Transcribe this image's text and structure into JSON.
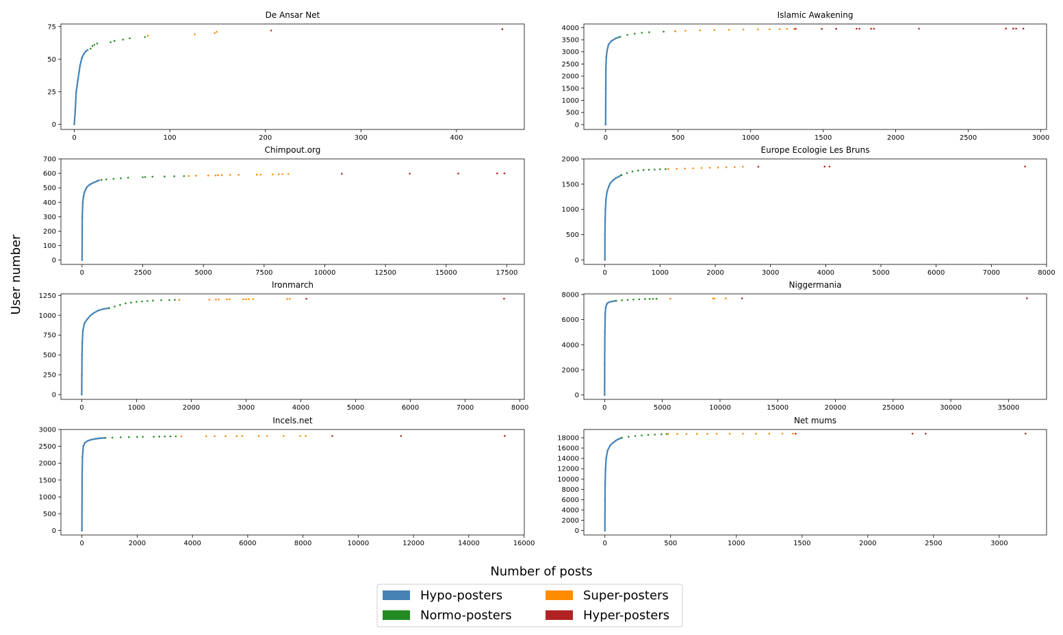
{
  "figure": {
    "xlabel": "Number of posts",
    "ylabel": "User number"
  },
  "legend": {
    "position": "bottom-center",
    "items": [
      {
        "label": "Hypo-posters",
        "color": "#4682b4"
      },
      {
        "label": "Normo-posters",
        "color": "#228b22"
      },
      {
        "label": "Super-posters",
        "color": "#ff8c00"
      },
      {
        "label": "Hyper-posters",
        "color": "#b22222"
      }
    ]
  },
  "chart_data": [
    {
      "type": "scatter",
      "title": "De Ansar Net",
      "n_users": 73,
      "xlim": [
        -14,
        471
      ],
      "ylim": [
        -4,
        77
      ],
      "xticks": [
        0,
        100,
        200,
        300,
        400
      ],
      "yticks": [
        0,
        25,
        50,
        75
      ],
      "series": [
        {
          "category": "Hypo-posters",
          "x": [
            0,
            1,
            2,
            3,
            4,
            5,
            6,
            7,
            8,
            10,
            12,
            14
          ],
          "y": [
            0,
            10,
            25,
            30,
            35,
            40,
            45,
            48,
            51,
            54,
            56,
            57
          ]
        },
        {
          "category": "Normo-posters",
          "x": [
            17,
            19,
            21,
            24,
            38,
            42,
            51,
            58,
            74
          ],
          "y": [
            58,
            60,
            61,
            62,
            63,
            64,
            65,
            66,
            67
          ]
        },
        {
          "category": "Super-posters",
          "x": [
            77,
            126,
            147,
            149
          ],
          "y": [
            68,
            69,
            70,
            71
          ]
        },
        {
          "category": "Hyper-posters",
          "x": [
            206,
            448
          ],
          "y": [
            72,
            73
          ]
        }
      ]
    },
    {
      "type": "scatter",
      "title": "Islamic Awakening",
      "n_users": 3960,
      "xlim": [
        -150,
        3040
      ],
      "ylim": [
        -200,
        4150
      ],
      "xticks": [
        0,
        500,
        1000,
        1500,
        2000,
        2500,
        3000
      ],
      "yticks": [
        0,
        500,
        1000,
        1500,
        2000,
        2500,
        3000,
        3500,
        4000
      ],
      "series": [
        {
          "category": "Hypo-posters",
          "x": [
            0,
            1,
            2,
            5,
            10,
            20,
            40,
            70,
            100
          ],
          "y": [
            0,
            1500,
            2300,
            2800,
            3050,
            3300,
            3450,
            3560,
            3620
          ]
        },
        {
          "category": "Normo-posters",
          "x": [
            100,
            150,
            200,
            250,
            300,
            400,
            480
          ],
          "y": [
            3620,
            3700,
            3750,
            3790,
            3810,
            3835,
            3850
          ]
        },
        {
          "category": "Super-posters",
          "x": [
            480,
            550,
            650,
            750,
            850,
            950,
            1050,
            1130,
            1200,
            1250,
            1300
          ],
          "y": [
            3850,
            3870,
            3890,
            3900,
            3910,
            3920,
            3925,
            3930,
            3935,
            3940,
            3945
          ]
        },
        {
          "category": "Hyper-posters",
          "x": [
            1310,
            1490,
            1590,
            1730,
            1750,
            1830,
            1850,
            2160,
            2760,
            2810,
            2830,
            2880
          ],
          "y": [
            3950,
            3950,
            3950,
            3955,
            3955,
            3955,
            3955,
            3955,
            3960,
            3960,
            3960,
            3960
          ]
        }
      ]
    },
    {
      "type": "scatter",
      "title": "Chimpout.org",
      "n_users": 600,
      "xlim": [
        -870,
        18220
      ],
      "ylim": [
        -30,
        700
      ],
      "xticks": [
        0,
        2500,
        5000,
        7500,
        10000,
        12500,
        15000,
        17500
      ],
      "yticks": [
        0,
        100,
        200,
        300,
        400,
        500,
        600,
        700
      ],
      "series": [
        {
          "category": "Hypo-posters",
          "x": [
            0,
            10,
            30,
            60,
            100,
            150,
            200,
            300,
            400,
            500,
            600,
            700
          ],
          "y": [
            0,
            300,
            400,
            440,
            470,
            490,
            505,
            520,
            530,
            538,
            545,
            552
          ]
        },
        {
          "category": "Normo-posters",
          "x": [
            800,
            1000,
            1300,
            1600,
            1900,
            2500,
            2600,
            2900,
            3400,
            3800,
            4200
          ],
          "y": [
            555,
            558,
            562,
            566,
            570,
            573,
            575,
            577,
            578,
            580,
            581
          ]
        },
        {
          "category": "Super-posters",
          "x": [
            4400,
            4700,
            5200,
            5500,
            5600,
            5750,
            6100,
            6450,
            7200,
            7350,
            7850,
            8100,
            8250,
            8500
          ],
          "y": [
            582,
            584,
            585,
            586,
            587,
            588,
            589,
            590,
            591,
            592,
            593,
            594,
            595,
            596
          ]
        },
        {
          "category": "Hyper-posters",
          "x": [
            10700,
            13500,
            15500,
            17100,
            17400
          ],
          "y": [
            597,
            598,
            599,
            600,
            600
          ]
        }
      ]
    },
    {
      "type": "scatter",
      "title": "Europe Ecologie Les Bruns",
      "n_users": 1850,
      "xlim": [
        -380,
        8000
      ],
      "ylim": [
        -90,
        2000
      ],
      "xticks": [
        0,
        1000,
        2000,
        3000,
        4000,
        5000,
        6000,
        7000,
        8000
      ],
      "yticks": [
        0,
        500,
        1000,
        1500,
        2000
      ],
      "series": [
        {
          "category": "Hypo-posters",
          "x": [
            0,
            2,
            5,
            10,
            20,
            40,
            70,
            100,
            150,
            200,
            250,
            300
          ],
          "y": [
            0,
            500,
            800,
            1000,
            1200,
            1350,
            1450,
            1520,
            1580,
            1620,
            1650,
            1680
          ]
        },
        {
          "category": "Normo-posters",
          "x": [
            300,
            400,
            500,
            600,
            700,
            800,
            900,
            1000,
            1100
          ],
          "y": [
            1680,
            1720,
            1750,
            1770,
            1780,
            1785,
            1790,
            1795,
            1800
          ]
        },
        {
          "category": "Super-posters",
          "x": [
            1150,
            1300,
            1450,
            1600,
            1750,
            1900,
            2050,
            2200,
            2350,
            2500
          ],
          "y": [
            1800,
            1805,
            1810,
            1815,
            1820,
            1825,
            1830,
            1835,
            1840,
            1845
          ]
        },
        {
          "category": "Hyper-posters",
          "x": [
            2780,
            3980,
            4070,
            7610
          ],
          "y": [
            1845,
            1848,
            1849,
            1850
          ]
        }
      ]
    },
    {
      "type": "scatter",
      "title": "Ironmarch",
      "n_users": 1210,
      "xlim": [
        -380,
        8080
      ],
      "ylim": [
        -60,
        1270
      ],
      "xticks": [
        0,
        1000,
        2000,
        3000,
        4000,
        5000,
        6000,
        7000,
        8000
      ],
      "yticks": [
        0,
        250,
        500,
        750,
        1000,
        1250
      ],
      "series": [
        {
          "category": "Hypo-posters",
          "x": [
            0,
            2,
            5,
            10,
            20,
            50,
            100,
            150,
            200,
            300,
            400,
            500
          ],
          "y": [
            0,
            250,
            500,
            650,
            800,
            900,
            950,
            990,
            1020,
            1060,
            1080,
            1090
          ]
        },
        {
          "category": "Normo-posters",
          "x": [
            500,
            600,
            700,
            800,
            900,
            1000,
            1100,
            1200,
            1300,
            1450,
            1600,
            1700
          ],
          "y": [
            1090,
            1110,
            1130,
            1150,
            1160,
            1170,
            1175,
            1180,
            1185,
            1190,
            1192,
            1195
          ]
        },
        {
          "category": "Super-posters",
          "x": [
            1780,
            2330,
            2450,
            2500,
            2650,
            2700,
            2950,
            3000,
            3050,
            3130,
            3750,
            3800
          ],
          "y": [
            1195,
            1197,
            1198,
            1199,
            1200,
            1201,
            1202,
            1203,
            1204,
            1205,
            1206,
            1207
          ]
        },
        {
          "category": "Hyper-posters",
          "x": [
            4100,
            7710
          ],
          "y": [
            1208,
            1210
          ]
        }
      ]
    },
    {
      "type": "scatter",
      "title": "Niggermania",
      "n_users": 7700,
      "xlim": [
        -1800,
        38300
      ],
      "ylim": [
        -350,
        8050
      ],
      "xticks": [
        0,
        5000,
        10000,
        15000,
        20000,
        25000,
        30000,
        35000
      ],
      "yticks": [
        0,
        2000,
        4000,
        6000,
        8000
      ],
      "series": [
        {
          "category": "Hypo-posters",
          "x": [
            0,
            5,
            20,
            50,
            100,
            200,
            300,
            500,
            700,
            900
          ],
          "y": [
            0,
            2500,
            5000,
            6500,
            7000,
            7250,
            7350,
            7420,
            7460,
            7490
          ]
        },
        {
          "category": "Normo-posters",
          "x": [
            1000,
            1500,
            2000,
            2500,
            3000,
            3500,
            3900,
            4200,
            4500
          ],
          "y": [
            7500,
            7540,
            7570,
            7600,
            7620,
            7640,
            7650,
            7655,
            7660
          ]
        },
        {
          "category": "Super-posters",
          "x": [
            5700,
            9400,
            9500,
            10500
          ],
          "y": [
            7670,
            7680,
            7685,
            7690
          ]
        },
        {
          "category": "Hyper-posters",
          "x": [
            11900,
            36600
          ],
          "y": [
            7695,
            7700
          ]
        }
      ]
    },
    {
      "type": "scatter",
      "title": "Incels.net",
      "n_users": 2810,
      "xlim": [
        -760,
        16010
      ],
      "ylim": [
        -130,
        3000
      ],
      "xticks": [
        0,
        2000,
        4000,
        6000,
        8000,
        10000,
        12000,
        14000,
        16000
      ],
      "yticks": [
        0,
        500,
        1000,
        1500,
        2000,
        2500,
        3000
      ],
      "series": [
        {
          "category": "Hypo-posters",
          "x": [
            0,
            5,
            20,
            50,
            100,
            200,
            300,
            400,
            500,
            600,
            700,
            800
          ],
          "y": [
            0,
            1500,
            2200,
            2500,
            2600,
            2660,
            2690,
            2710,
            2725,
            2735,
            2742,
            2750
          ]
        },
        {
          "category": "Normo-posters",
          "x": [
            850,
            1100,
            1400,
            1700,
            2000,
            2200,
            2600,
            2800,
            3000,
            3200,
            3400
          ],
          "y": [
            2752,
            2760,
            2768,
            2775,
            2780,
            2783,
            2788,
            2790,
            2793,
            2795,
            2798
          ]
        },
        {
          "category": "Super-posters",
          "x": [
            3600,
            4500,
            4800,
            5200,
            5600,
            5800,
            6400,
            6700,
            7300,
            7900,
            8100
          ],
          "y": [
            2799,
            2800,
            2801,
            2802,
            2803,
            2804,
            2805,
            2806,
            2806,
            2807,
            2808
          ]
        },
        {
          "category": "Hyper-posters",
          "x": [
            9060,
            11550,
            15300
          ],
          "y": [
            2809,
            2809,
            2810
          ]
        }
      ]
    },
    {
      "type": "scatter",
      "title": "Net mums",
      "n_users": 18800,
      "xlim": [
        -160,
        3360
      ],
      "ylim": [
        -850,
        19600
      ],
      "xticks": [
        0,
        500,
        1000,
        1500,
        2000,
        2500,
        3000
      ],
      "yticks": [
        0,
        2000,
        4000,
        6000,
        8000,
        10000,
        12000,
        14000,
        16000,
        18000
      ],
      "series": [
        {
          "category": "Hypo-posters",
          "x": [
            0,
            1,
            2,
            5,
            10,
            20,
            40,
            60,
            80,
            100,
            120
          ],
          "y": [
            0,
            6000,
            9000,
            12000,
            14000,
            15500,
            16500,
            17000,
            17400,
            17700,
            17900
          ]
        },
        {
          "category": "Normo-posters",
          "x": [
            130,
            180,
            230,
            280,
            330,
            380,
            430,
            470
          ],
          "y": [
            18000,
            18200,
            18350,
            18450,
            18550,
            18620,
            18680,
            18720
          ]
        },
        {
          "category": "Super-posters",
          "x": [
            480,
            550,
            620,
            700,
            780,
            850,
            950,
            1050,
            1150,
            1250,
            1350,
            1430
          ],
          "y": [
            18720,
            18740,
            18750,
            18760,
            18770,
            18775,
            18780,
            18785,
            18790,
            18793,
            18796,
            18798
          ]
        },
        {
          "category": "Hyper-posters",
          "x": [
            1450,
            2340,
            2440,
            3200
          ],
          "y": [
            18799,
            18799,
            18800,
            18800
          ]
        }
      ]
    }
  ]
}
